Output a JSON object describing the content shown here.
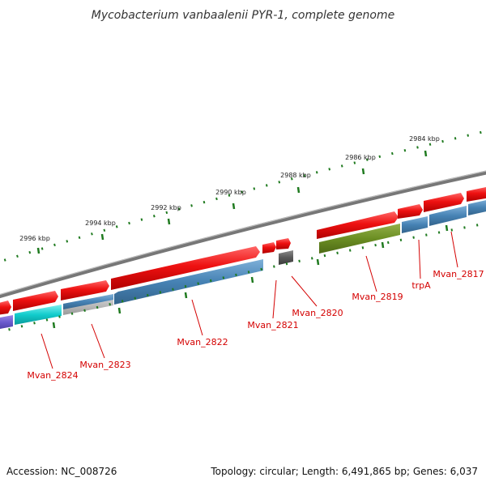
{
  "title": "Mycobacterium vanbaalenii PYR-1, complete genome",
  "footer": {
    "accession": "Accession: NC_008726",
    "topology": "Topology: circular; Length: 6,491,865 bp; Genes: 6,037"
  },
  "colors": {
    "backbone": "#7a7a7a",
    "tick": "#1f7a1f",
    "forward_gene": "#ee1111",
    "reverse_gene": "#4682b4",
    "label": "#d40000"
  },
  "kbp_ticks": [
    "2996 kbp",
    "2994 kbp",
    "2992 kbp",
    "2990 kbp",
    "2988 kbp",
    "2986 kbp",
    "2984 kbp"
  ],
  "gene_labels": [
    "Mvan_2824",
    "Mvan_2823",
    "Mvan_2822",
    "Mvan_2821",
    "Mvan_2820",
    "Mvan_2819",
    "trpA",
    "Mvan_2817"
  ]
}
